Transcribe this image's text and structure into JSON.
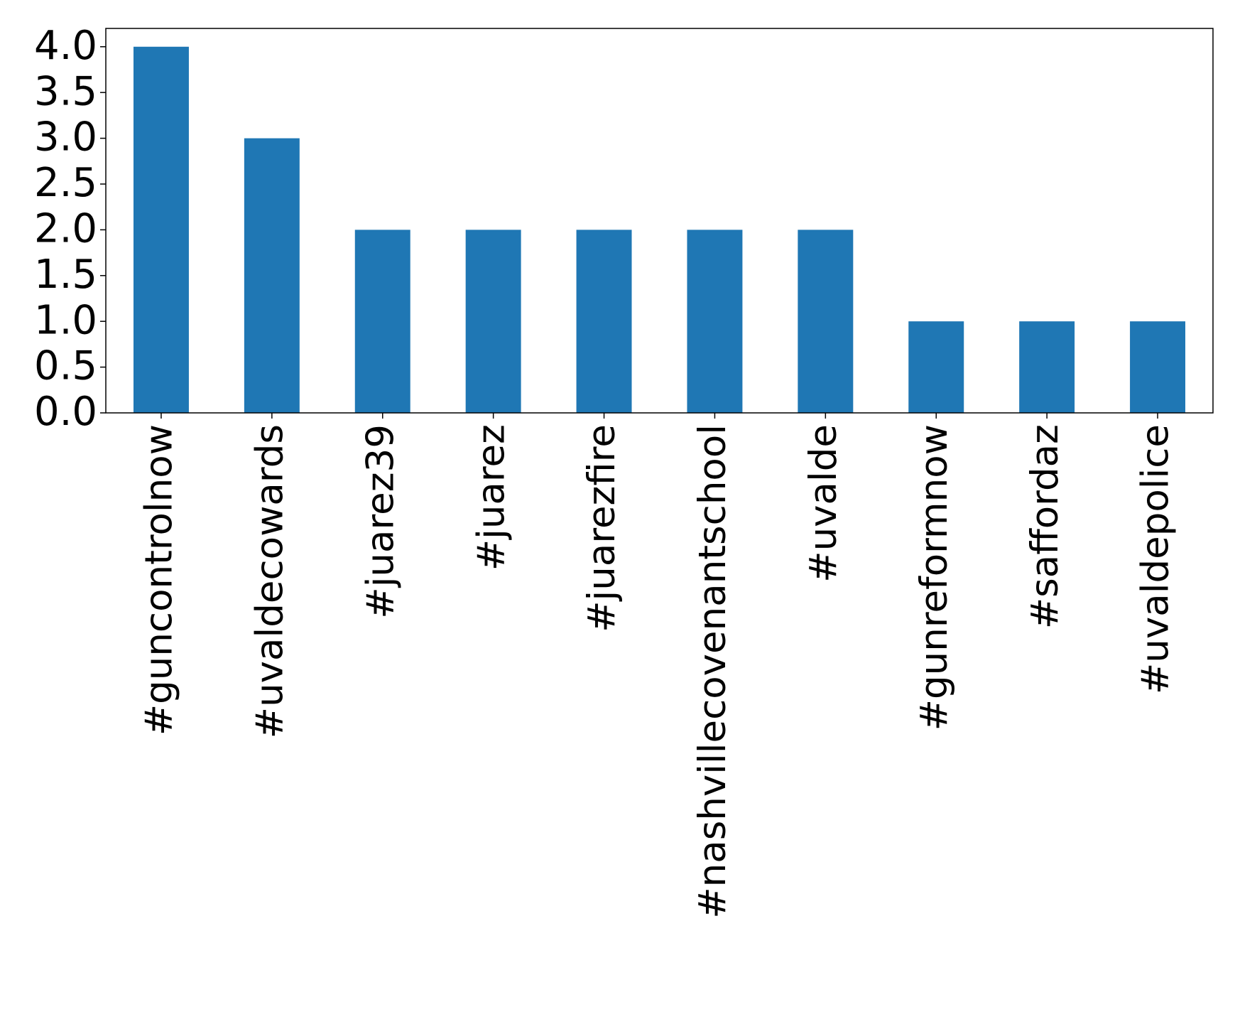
{
  "chart_data": {
    "type": "bar",
    "categories": [
      "#guncontrolnow",
      "#uvaldecowards",
      "#juarez39",
      "#juarez",
      "#juarezfire",
      "#nashvillecovenantschool",
      "#uvalde",
      "#gunreformnow",
      "#saffordaz",
      "#uvaldepolice"
    ],
    "values": [
      4,
      3,
      2,
      2,
      2,
      2,
      2,
      1,
      1,
      1
    ],
    "color": "#1f77b4",
    "ylim": [
      0,
      4.2
    ],
    "yticks": [
      {
        "value": 0,
        "label": "0.0"
      },
      {
        "value": 0.5,
        "label": "0.5"
      },
      {
        "value": 1,
        "label": "1.0"
      },
      {
        "value": 1.5,
        "label": "1.5"
      },
      {
        "value": 2,
        "label": "2.0"
      },
      {
        "value": 2.5,
        "label": "2.5"
      },
      {
        "value": 3,
        "label": "3.0"
      },
      {
        "value": 3.5,
        "label": "3.5"
      },
      {
        "value": 4,
        "label": "4.0"
      }
    ],
    "grid": false
  }
}
